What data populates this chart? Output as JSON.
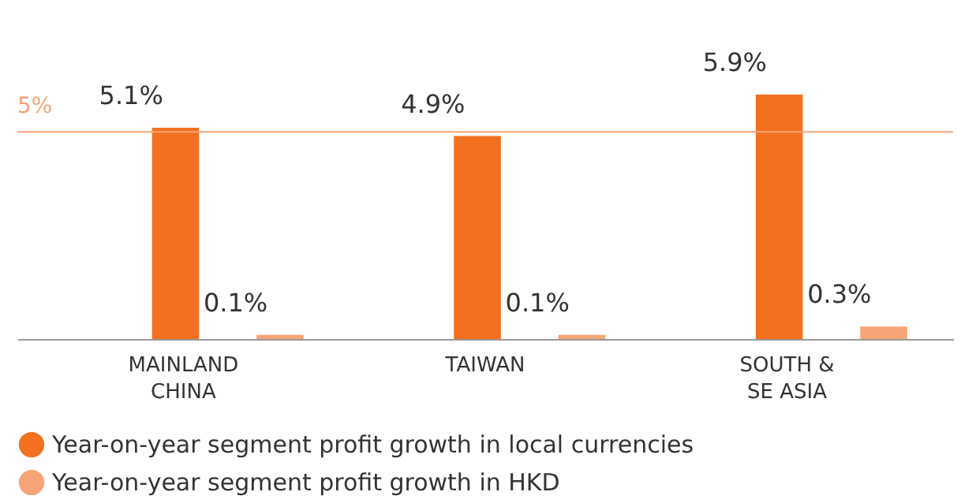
{
  "chart_data": {
    "type": "bar",
    "categories": [
      "MAINLAND\nCHINA",
      "TAIWAN",
      "SOUTH &\nSE ASIA"
    ],
    "series": [
      {
        "name": "Year-on-year segment profit growth in local currencies",
        "color": "#f37021",
        "values": [
          5.1,
          4.9,
          5.9
        ],
        "value_labels": [
          "5.1%",
          "4.9%",
          "5.9%"
        ]
      },
      {
        "name": "Year-on-year segment profit growth in HKD",
        "color": "#f7a477",
        "values": [
          0.1,
          0.1,
          0.3
        ],
        "value_labels": [
          "0.1%",
          "0.1%",
          "0.3%"
        ]
      }
    ],
    "tick_labels": "x",
    "grid": false,
    "legend": "bottom",
    "ref_lines": [
      {
        "axis": "y",
        "value": 5,
        "label": "5%",
        "color": "#f7a477"
      }
    ]
  }
}
